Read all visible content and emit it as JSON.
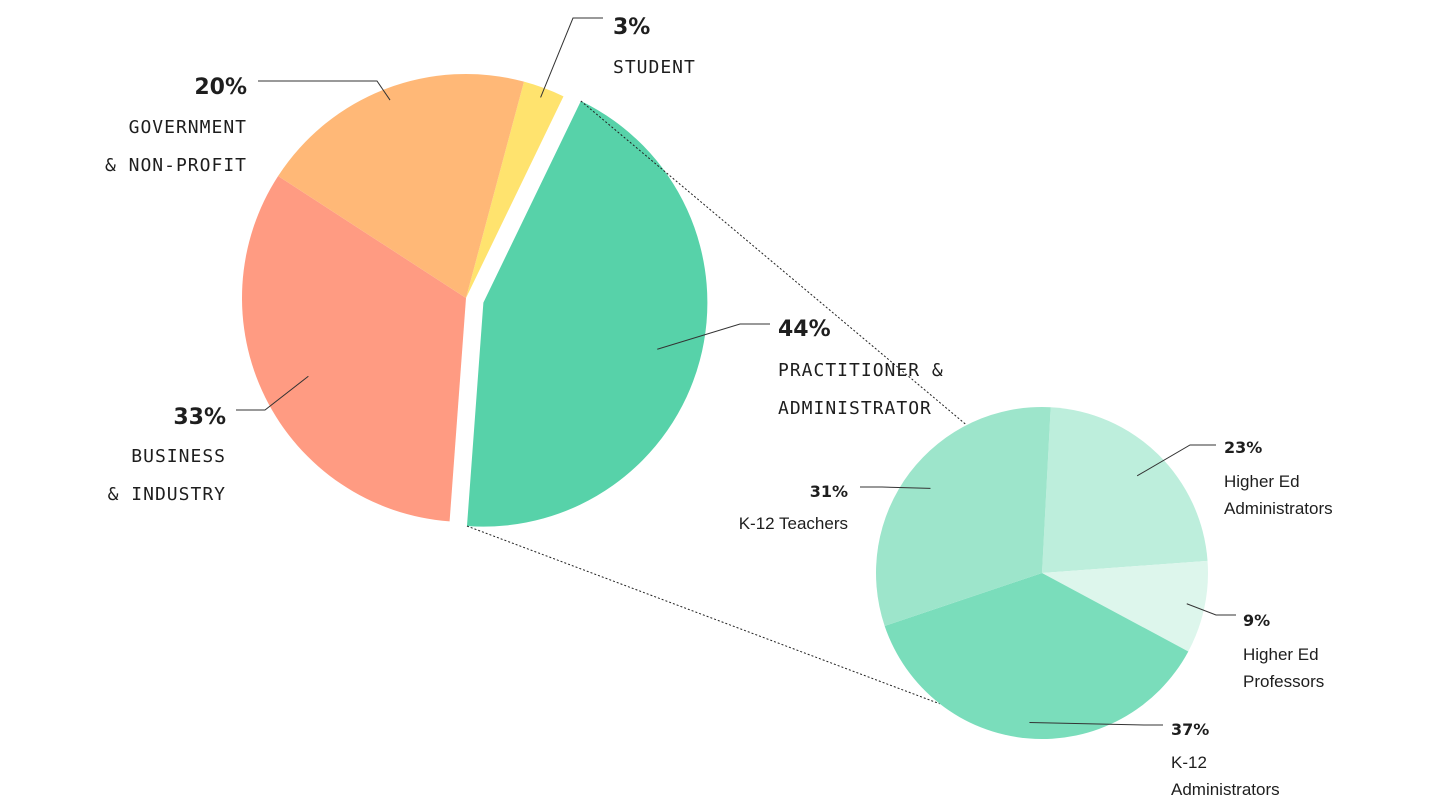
{
  "chart_data": [
    {
      "type": "pie",
      "slices": [
        {
          "pct_label": "3%",
          "value": 3,
          "label_lines": [
            "STUDENT"
          ],
          "color": "#FFE36E"
        },
        {
          "pct_label": "44%",
          "value": 44,
          "label_lines": [
            "PRACTITIONER &",
            "ADMINISTRATOR"
          ],
          "color": "#57D2A9"
        },
        {
          "pct_label": "33%",
          "value": 33,
          "label_lines": [
            "BUSINESS",
            "& INDUSTRY"
          ],
          "color": "#FF9B82"
        },
        {
          "pct_label": "20%",
          "value": 20,
          "label_lines": [
            "GOVERNMENT",
            "& NON-PROFIT"
          ],
          "color": "#FFB877"
        }
      ]
    },
    {
      "type": "pie",
      "breakdown_of": "44%",
      "slices": [
        {
          "pct_label": "23%",
          "value": 23,
          "label_lines": [
            "Higher Ed",
            "Administrators"
          ],
          "color": "#BDEEDC"
        },
        {
          "pct_label": "9%",
          "value": 9,
          "label_lines": [
            "Higher Ed",
            "Professors"
          ],
          "color": "#DDF6EC"
        },
        {
          "pct_label": "37%",
          "value": 37,
          "label_lines": [
            "K-12",
            "Administrators"
          ],
          "color": "#7ADDBB"
        },
        {
          "pct_label": "31%",
          "value": 31,
          "label_lines": [
            "K-12 Teachers"
          ],
          "color": "#9DE5CB"
        }
      ]
    }
  ]
}
